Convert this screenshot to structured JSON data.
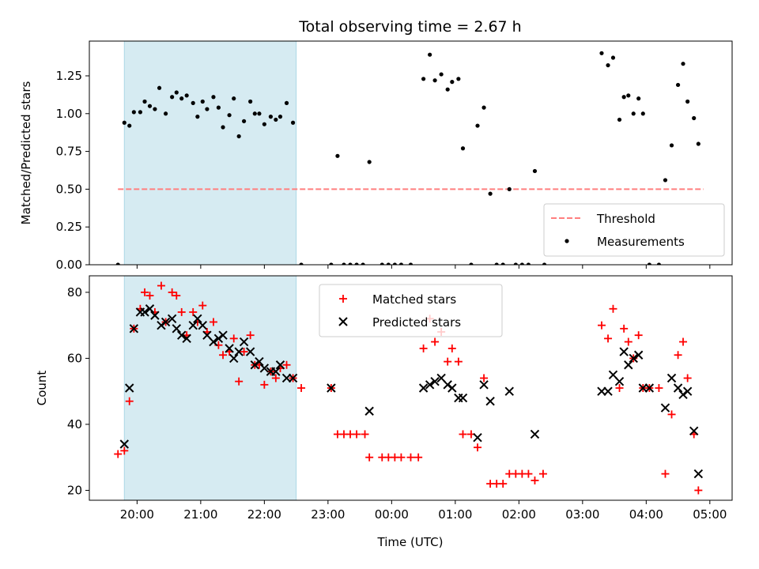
{
  "title": "Total observing time = 2.67 h",
  "xlabel": "Time (UTC)",
  "x_ticks": [
    "20:00",
    "21:00",
    "22:00",
    "23:00",
    "00:00",
    "01:00",
    "02:00",
    "03:00",
    "04:00",
    "05:00"
  ],
  "colors": {
    "shade": "#add8e6",
    "threshold": "#ff7f7f",
    "matched": "#ff0000",
    "predicted": "#000000"
  },
  "chart_data": [
    {
      "type": "scatter",
      "ylabel": "Matched/Predicted stars",
      "xlim": [
        -0.75,
        9.35
      ],
      "ylim": [
        0,
        1.48
      ],
      "y_ticks": [
        "0.00",
        "0.25",
        "0.50",
        "0.75",
        "1.00",
        "1.25"
      ],
      "y_tick_values": [
        0,
        0.25,
        0.5,
        0.75,
        1.0,
        1.25
      ],
      "shaded_span": [
        -0.2,
        2.5
      ],
      "threshold": {
        "name": "Threshold",
        "value": 0.5,
        "x_range": [
          -0.3,
          8.9
        ]
      },
      "series": [
        {
          "name": "Measurements",
          "points": [
            [
              -0.3,
              0.0
            ],
            [
              -0.2,
              0.94
            ],
            [
              -0.12,
              0.92
            ],
            [
              -0.05,
              1.01
            ],
            [
              0.05,
              1.01
            ],
            [
              0.12,
              1.08
            ],
            [
              0.2,
              1.05
            ],
            [
              0.28,
              1.03
            ],
            [
              0.35,
              1.17
            ],
            [
              0.45,
              1.0
            ],
            [
              0.55,
              1.11
            ],
            [
              0.62,
              1.14
            ],
            [
              0.7,
              1.1
            ],
            [
              0.78,
              1.12
            ],
            [
              0.88,
              1.07
            ],
            [
              0.95,
              0.98
            ],
            [
              1.03,
              1.08
            ],
            [
              1.1,
              1.03
            ],
            [
              1.2,
              1.11
            ],
            [
              1.28,
              1.04
            ],
            [
              1.35,
              0.91
            ],
            [
              1.45,
              0.99
            ],
            [
              1.52,
              1.1
            ],
            [
              1.6,
              0.85
            ],
            [
              1.68,
              0.95
            ],
            [
              1.78,
              1.08
            ],
            [
              1.85,
              1.0
            ],
            [
              1.92,
              1.0
            ],
            [
              2.0,
              0.93
            ],
            [
              2.1,
              0.98
            ],
            [
              2.18,
              0.96
            ],
            [
              2.25,
              0.98
            ],
            [
              2.35,
              1.07
            ],
            [
              2.45,
              0.94
            ],
            [
              2.58,
              0.0
            ],
            [
              3.05,
              0.0
            ],
            [
              3.15,
              0.72
            ],
            [
              3.25,
              0.0
            ],
            [
              3.35,
              0.0
            ],
            [
              3.45,
              0.0
            ],
            [
              3.55,
              0.0
            ],
            [
              3.65,
              0.68
            ],
            [
              3.85,
              0.0
            ],
            [
              3.95,
              0.0
            ],
            [
              4.05,
              0.0
            ],
            [
              4.15,
              0.0
            ],
            [
              4.3,
              0.0
            ],
            [
              4.5,
              1.23
            ],
            [
              4.6,
              1.39
            ],
            [
              4.68,
              1.22
            ],
            [
              4.78,
              1.26
            ],
            [
              4.88,
              1.16
            ],
            [
              4.95,
              1.21
            ],
            [
              5.05,
              1.23
            ],
            [
              5.12,
              0.77
            ],
            [
              5.25,
              0.0
            ],
            [
              5.35,
              0.92
            ],
            [
              5.45,
              1.04
            ],
            [
              5.55,
              0.47
            ],
            [
              5.65,
              0.0
            ],
            [
              5.75,
              0.0
            ],
            [
              5.85,
              0.5
            ],
            [
              5.95,
              0.0
            ],
            [
              6.05,
              0.0
            ],
            [
              6.15,
              0.0
            ],
            [
              6.25,
              0.62
            ],
            [
              6.4,
              0.0
            ],
            [
              7.3,
              1.4
            ],
            [
              7.4,
              1.32
            ],
            [
              7.48,
              1.37
            ],
            [
              7.58,
              0.96
            ],
            [
              7.65,
              1.11
            ],
            [
              7.72,
              1.12
            ],
            [
              7.8,
              1.0
            ],
            [
              7.88,
              1.1
            ],
            [
              7.95,
              1.0
            ],
            [
              8.05,
              0.0
            ],
            [
              8.2,
              0.0
            ],
            [
              8.3,
              0.56
            ],
            [
              8.4,
              0.79
            ],
            [
              8.5,
              1.19
            ],
            [
              8.58,
              1.33
            ],
            [
              8.65,
              1.08
            ],
            [
              8.75,
              0.97
            ],
            [
              8.82,
              0.8
            ]
          ]
        }
      ],
      "legend": {
        "position": "lower right",
        "entries": [
          "Threshold",
          "Measurements"
        ]
      }
    },
    {
      "type": "scatter",
      "ylabel": "Count",
      "xlim": [
        -0.75,
        9.35
      ],
      "ylim": [
        17,
        85
      ],
      "y_ticks": [
        "20",
        "40",
        "60",
        "80"
      ],
      "y_tick_values": [
        20,
        40,
        60,
        80
      ],
      "shaded_span": [
        -0.2,
        2.5
      ],
      "series": [
        {
          "name": "Matched stars",
          "marker": "plus",
          "points": [
            [
              -0.3,
              31
            ],
            [
              -0.2,
              32
            ],
            [
              -0.12,
              47
            ],
            [
              -0.05,
              69
            ],
            [
              0.05,
              75
            ],
            [
              0.12,
              80
            ],
            [
              0.2,
              79
            ],
            [
              0.28,
              74
            ],
            [
              0.38,
              82
            ],
            [
              0.45,
              71
            ],
            [
              0.55,
              80
            ],
            [
              0.62,
              79
            ],
            [
              0.7,
              74
            ],
            [
              0.78,
              67
            ],
            [
              0.88,
              74
            ],
            [
              0.95,
              71
            ],
            [
              1.03,
              76
            ],
            [
              1.1,
              68
            ],
            [
              1.2,
              71
            ],
            [
              1.28,
              64
            ],
            [
              1.35,
              61
            ],
            [
              1.45,
              62
            ],
            [
              1.52,
              66
            ],
            [
              1.6,
              53
            ],
            [
              1.68,
              62
            ],
            [
              1.78,
              67
            ],
            [
              1.85,
              58
            ],
            [
              1.92,
              58
            ],
            [
              2.0,
              52
            ],
            [
              2.1,
              56
            ],
            [
              2.18,
              54
            ],
            [
              2.25,
              57
            ],
            [
              2.35,
              58
            ],
            [
              2.45,
              54
            ],
            [
              2.58,
              51
            ],
            [
              3.05,
              51
            ],
            [
              3.15,
              37
            ],
            [
              3.25,
              37
            ],
            [
              3.35,
              37
            ],
            [
              3.45,
              37
            ],
            [
              3.58,
              37
            ],
            [
              3.65,
              30
            ],
            [
              3.85,
              30
            ],
            [
              3.95,
              30
            ],
            [
              4.05,
              30
            ],
            [
              4.15,
              30
            ],
            [
              4.3,
              30
            ],
            [
              4.42,
              30
            ],
            [
              4.5,
              63
            ],
            [
              4.6,
              72
            ],
            [
              4.68,
              65
            ],
            [
              4.78,
              68
            ],
            [
              4.88,
              59
            ],
            [
              4.95,
              63
            ],
            [
              5.05,
              59
            ],
            [
              5.12,
              37
            ],
            [
              5.25,
              37
            ],
            [
              5.35,
              33
            ],
            [
              5.45,
              54
            ],
            [
              5.55,
              22
            ],
            [
              5.65,
              22
            ],
            [
              5.75,
              22
            ],
            [
              5.85,
              25
            ],
            [
              5.95,
              25
            ],
            [
              6.05,
              25
            ],
            [
              6.15,
              25
            ],
            [
              6.25,
              23
            ],
            [
              6.38,
              25
            ],
            [
              7.3,
              70
            ],
            [
              7.4,
              66
            ],
            [
              7.48,
              75
            ],
            [
              7.58,
              51
            ],
            [
              7.65,
              69
            ],
            [
              7.72,
              65
            ],
            [
              7.8,
              60
            ],
            [
              7.88,
              67
            ],
            [
              7.95,
              51
            ],
            [
              8.05,
              51
            ],
            [
              8.2,
              51
            ],
            [
              8.3,
              25
            ],
            [
              8.4,
              43
            ],
            [
              8.5,
              61
            ],
            [
              8.58,
              65
            ],
            [
              8.65,
              54
            ],
            [
              8.75,
              37
            ],
            [
              8.82,
              20
            ]
          ]
        },
        {
          "name": "Predicted stars",
          "marker": "x",
          "points": [
            [
              -0.2,
              34
            ],
            [
              -0.12,
              51
            ],
            [
              -0.05,
              69
            ],
            [
              0.05,
              74
            ],
            [
              0.12,
              74
            ],
            [
              0.2,
              75
            ],
            [
              0.28,
              73
            ],
            [
              0.38,
              70
            ],
            [
              0.45,
              71
            ],
            [
              0.55,
              72
            ],
            [
              0.62,
              69
            ],
            [
              0.7,
              67
            ],
            [
              0.78,
              66
            ],
            [
              0.88,
              70
            ],
            [
              0.95,
              72
            ],
            [
              1.03,
              70
            ],
            [
              1.1,
              67
            ],
            [
              1.2,
              65
            ],
            [
              1.28,
              66
            ],
            [
              1.35,
              67
            ],
            [
              1.45,
              63
            ],
            [
              1.52,
              60
            ],
            [
              1.6,
              62
            ],
            [
              1.68,
              65
            ],
            [
              1.78,
              62
            ],
            [
              1.85,
              58
            ],
            [
              1.92,
              59
            ],
            [
              2.0,
              57
            ],
            [
              2.1,
              56
            ],
            [
              2.18,
              56
            ],
            [
              2.25,
              58
            ],
            [
              2.35,
              54
            ],
            [
              2.45,
              54
            ],
            [
              3.05,
              51
            ],
            [
              3.65,
              44
            ],
            [
              4.5,
              51
            ],
            [
              4.6,
              52
            ],
            [
              4.68,
              53
            ],
            [
              4.78,
              54
            ],
            [
              4.88,
              52
            ],
            [
              4.95,
              51
            ],
            [
              5.05,
              48
            ],
            [
              5.12,
              48
            ],
            [
              5.35,
              36
            ],
            [
              5.45,
              52
            ],
            [
              5.55,
              47
            ],
            [
              5.85,
              50
            ],
            [
              6.25,
              37
            ],
            [
              7.3,
              50
            ],
            [
              7.4,
              50
            ],
            [
              7.48,
              55
            ],
            [
              7.58,
              53
            ],
            [
              7.65,
              62
            ],
            [
              7.72,
              58
            ],
            [
              7.8,
              60
            ],
            [
              7.88,
              61
            ],
            [
              7.95,
              51
            ],
            [
              8.05,
              51
            ],
            [
              8.3,
              45
            ],
            [
              8.4,
              54
            ],
            [
              8.5,
              51
            ],
            [
              8.58,
              49
            ],
            [
              8.65,
              50
            ],
            [
              8.75,
              38
            ],
            [
              8.82,
              25
            ]
          ]
        }
      ],
      "legend": {
        "position": "upper center",
        "entries": [
          "Matched stars",
          "Predicted stars"
        ]
      }
    }
  ]
}
